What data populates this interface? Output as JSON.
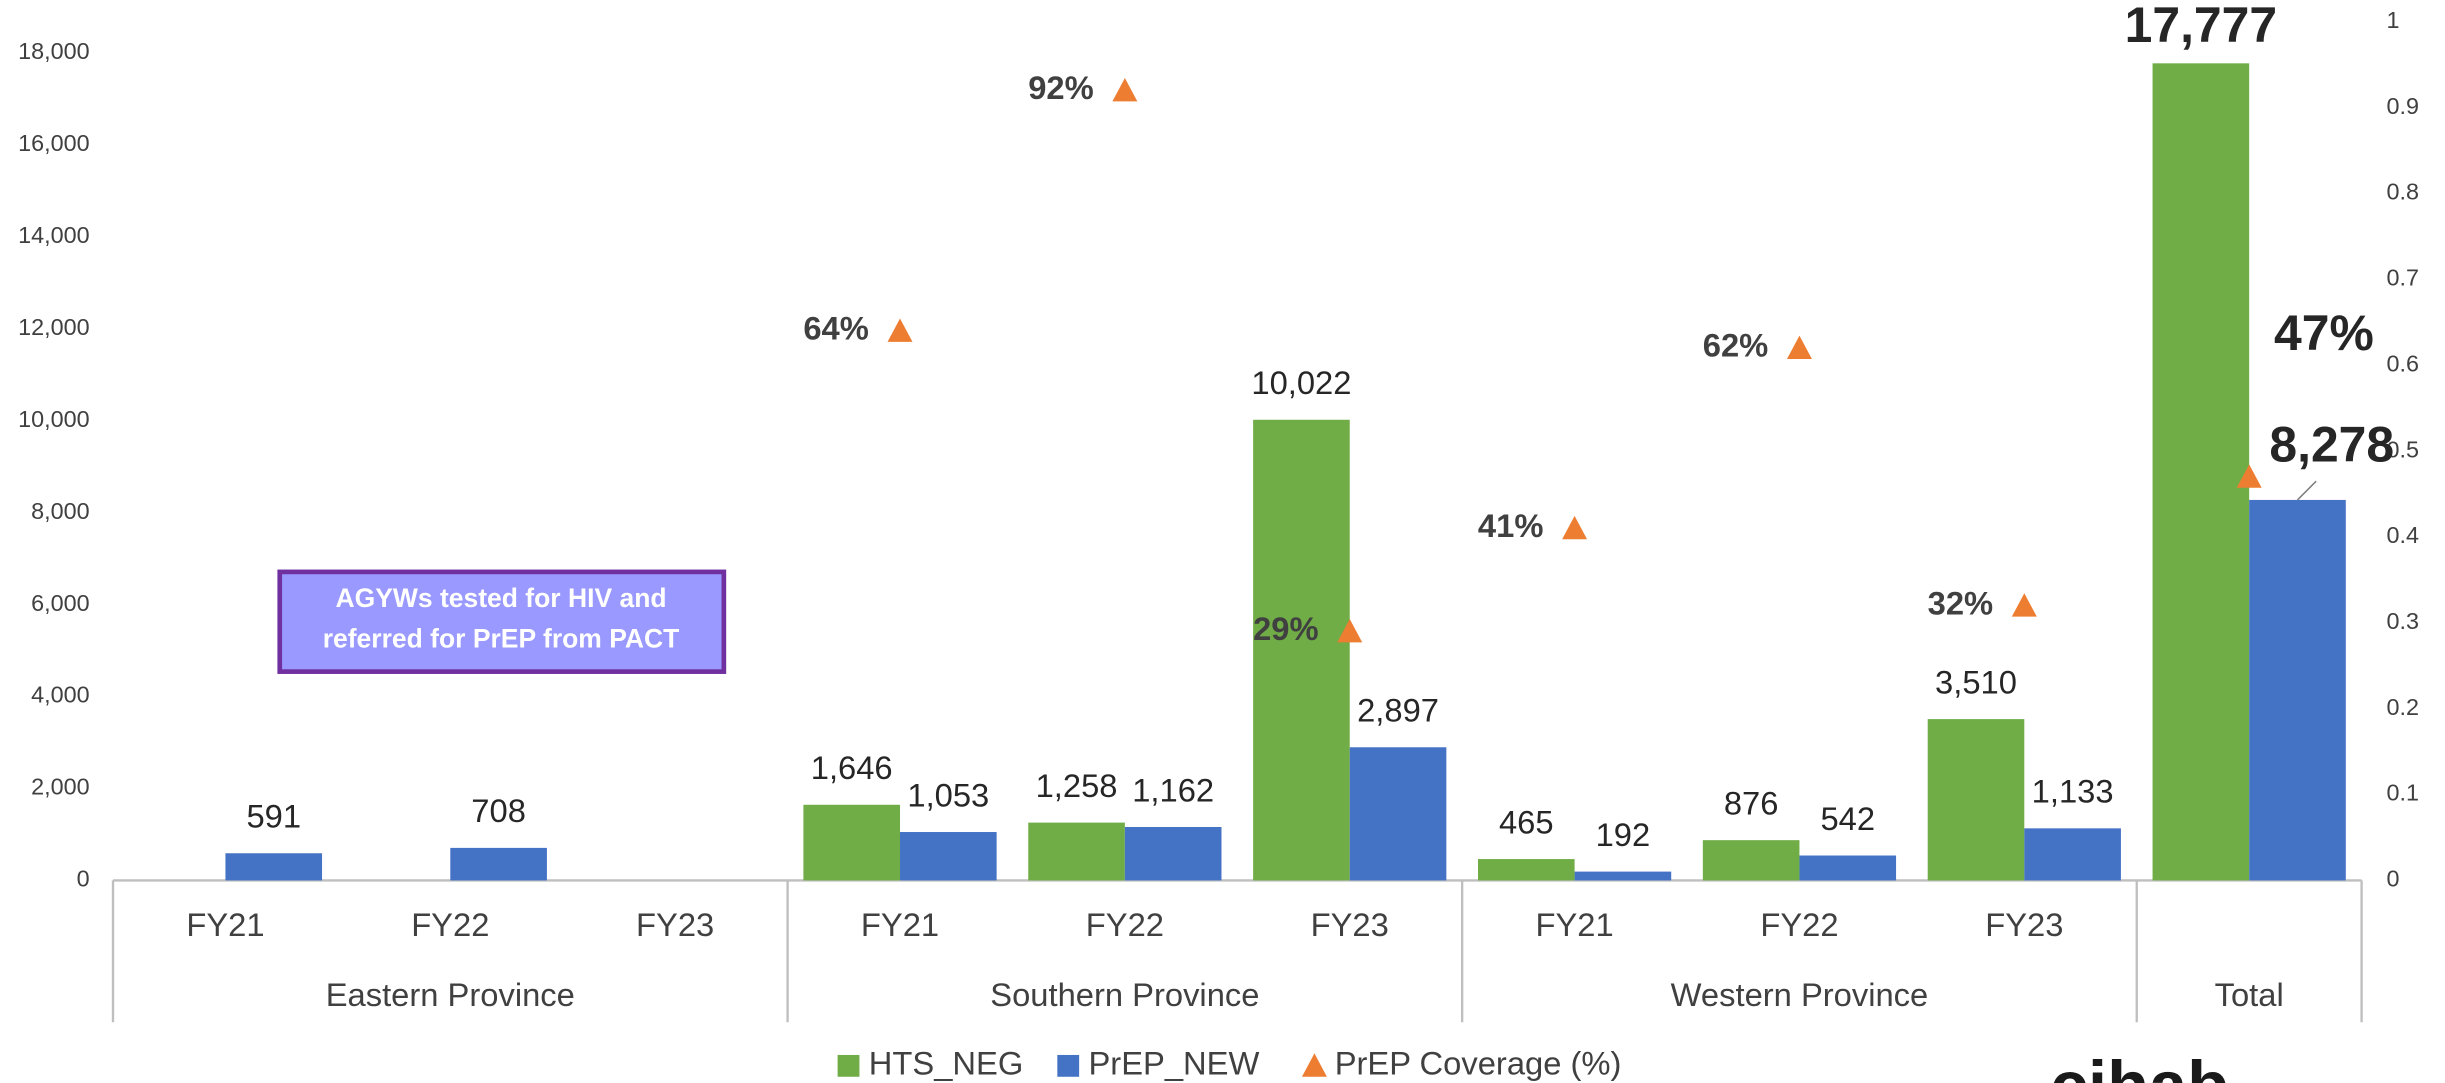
{
  "chart_data": {
    "type": "bar",
    "groups": [
      {
        "label": "Eastern Province",
        "categories": [
          "FY21",
          "FY22",
          "FY23"
        ]
      },
      {
        "label": "Southern Province",
        "categories": [
          "FY21",
          "FY22",
          "FY23"
        ]
      },
      {
        "label": "Western Province",
        "categories": [
          "FY21",
          "FY22",
          "FY23"
        ]
      },
      {
        "label": "Total",
        "categories": [
          null
        ]
      }
    ],
    "series": [
      {
        "name": "HTS_NEG",
        "type": "bar",
        "color": "#70ad47",
        "values": [
          null,
          null,
          null,
          1646,
          1258,
          10022,
          465,
          876,
          3510,
          17777
        ],
        "value_labels": [
          null,
          null,
          null,
          "1,646",
          "1,258",
          "10,022",
          "465",
          "876",
          "3,510",
          "17,777"
        ]
      },
      {
        "name": "PrEP_NEW",
        "type": "bar",
        "color": "#4472c4",
        "values": [
          591,
          708,
          null,
          1053,
          1162,
          2897,
          192,
          542,
          1133,
          8278
        ],
        "value_labels": [
          "591",
          "708",
          null,
          "1,053",
          "1,162",
          "2,897",
          "192",
          "542",
          "1,133",
          "8,278"
        ]
      },
      {
        "name": "PrEP Coverage (%)",
        "type": "scatter",
        "axis": "y2",
        "color": "#ed7d31",
        "values": [
          null,
          null,
          null,
          0.64,
          0.92,
          0.29,
          0.41,
          0.62,
          0.32,
          0.47
        ],
        "value_labels": [
          null,
          null,
          null,
          "64%",
          "92%",
          "29%",
          "41%",
          "62%",
          "32%",
          "47%"
        ]
      }
    ],
    "ylim": [
      0,
      18680
    ],
    "yticks": [
      0,
      {
        "value": 2000,
        "label": "2,000"
      },
      {
        "value": 4000,
        "label": "4,000"
      },
      {
        "value": 6000,
        "label": "6,000"
      },
      {
        "value": 8000,
        "label": "8,000"
      },
      {
        "value": 10000,
        "label": "10,000"
      },
      {
        "value": 12000,
        "label": "12,000"
      },
      {
        "value": 14000,
        "label": "14,000"
      },
      {
        "value": 16000,
        "label": "16,000"
      },
      {
        "value": 18000,
        "label": "18,000"
      }
    ],
    "y2lim": [
      0,
      1
    ],
    "y2ticks": [
      0,
      0.1,
      0.2,
      0.3,
      0.4,
      0.5,
      0.6,
      0.7,
      0.8,
      0.9,
      1
    ],
    "annotation": [
      "AGYWs tested for HIV and",
      "referred for PrEP from PACT"
    ],
    "logo_text": "cihab",
    "legend": "bottom"
  }
}
